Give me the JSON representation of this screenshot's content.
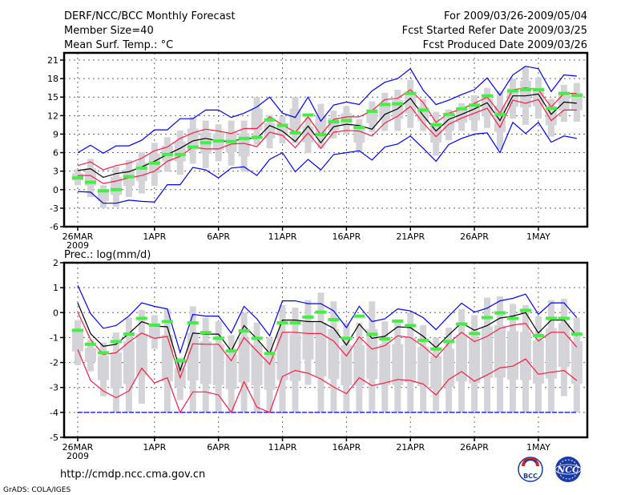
{
  "header": {
    "title": "DERF/NCC/BCC Monthly Forecast",
    "member_size": "Member Size=40",
    "variable": "Mean Surf. Temp.: °C",
    "period": "For 2009/03/26-2009/05/04",
    "started": "Fcst Started Refer Date 2009/03/25",
    "produced": "Fcst Produced Date 2009/03/26"
  },
  "footer": {
    "url": "http://cmdp.ncc.cma.gov.cn",
    "credit": "GrADS: COLA/IGES",
    "logo_left": "BCC",
    "logo_right": "NCC"
  },
  "colors": {
    "max_min": "#0000ff",
    "spread": "#ff1a40",
    "mean": "#000000",
    "marker": "#44ee44",
    "box": "#d4d4d8"
  },
  "chart_data": [
    {
      "type": "line",
      "title": "Mean Surf. Temp.: °C",
      "x_tick_labels": [
        "26MAR",
        "1APR",
        "6APR",
        "11APR",
        "16APR",
        "21APR",
        "26APR",
        "1MAY"
      ],
      "x_tick_days": [
        0,
        6,
        11,
        16,
        21,
        26,
        31,
        36
      ],
      "year_label": "2009",
      "start_date": "2009-03-26",
      "n_days": 40,
      "ylim": [
        -6,
        21
      ],
      "y_ticks": [
        -6,
        -3,
        0,
        3,
        6,
        9,
        12,
        15,
        18,
        21
      ],
      "series": {
        "max": [
          6.0,
          7.2,
          5.9,
          7.1,
          7.1,
          8.0,
          9.7,
          9.7,
          11.5,
          11.5,
          12.9,
          12.9,
          11.7,
          12.4,
          13.4,
          15.0,
          12.4,
          11.7,
          15.0,
          11.1,
          13.7,
          14.2,
          13.8,
          16.0,
          17.4,
          18.0,
          19.6,
          16.1,
          13.8,
          14.5,
          15.4,
          16.2,
          18.1,
          15.3,
          18.6,
          20.0,
          19.6,
          15.9,
          18.6,
          18.4
        ],
        "min": [
          -0.3,
          -0.4,
          -2.2,
          -2.2,
          -1.7,
          -1.9,
          -2.0,
          0.8,
          0.8,
          3.6,
          3.2,
          1.9,
          3.5,
          3.7,
          2.3,
          4.9,
          6.0,
          2.9,
          4.9,
          3.2,
          5.7,
          6.0,
          6.3,
          4.8,
          6.9,
          7.4,
          8.7,
          6.7,
          4.6,
          7.3,
          8.3,
          9.0,
          9.2,
          6.0,
          10.9,
          9.1,
          10.9,
          7.7,
          8.7,
          8.3
        ],
        "upper": [
          3.9,
          4.5,
          3.2,
          3.9,
          4.3,
          5.1,
          6.3,
          6.9,
          8.3,
          9.2,
          9.8,
          9.5,
          9.1,
          9.9,
          9.9,
          11.8,
          10.5,
          9.3,
          11.8,
          8.9,
          11.4,
          11.8,
          11.8,
          12.8,
          14.6,
          14.8,
          16.2,
          14.1,
          10.9,
          12.4,
          13.1,
          14.0,
          15.0,
          12.4,
          16.2,
          16.5,
          16.2,
          13.4,
          15.6,
          15.6
        ],
        "lower": [
          2.3,
          2.3,
          1.0,
          1.4,
          1.9,
          2.3,
          3.0,
          4.6,
          5.4,
          6.9,
          6.6,
          6.6,
          7.4,
          7.5,
          7.0,
          9.3,
          8.8,
          6.8,
          9.2,
          6.7,
          9.3,
          9.6,
          9.5,
          8.7,
          10.8,
          11.9,
          13.5,
          10.8,
          8.6,
          10.6,
          11.6,
          12.4,
          13.2,
          10.1,
          14.5,
          14.0,
          14.6,
          11.2,
          12.9,
          12.9
        ],
        "mean": [
          3.1,
          3.4,
          2.0,
          2.6,
          2.9,
          3.7,
          4.6,
          5.7,
          6.7,
          7.9,
          8.3,
          7.9,
          7.8,
          8.3,
          8.3,
          10.4,
          9.5,
          7.8,
          10.3,
          7.6,
          10.2,
          10.6,
          10.4,
          9.8,
          12.2,
          13.1,
          14.8,
          12.0,
          9.5,
          11.4,
          12.2,
          13.1,
          14.1,
          11.2,
          15.2,
          15.2,
          15.5,
          12.2,
          14.2,
          14.0
        ],
        "marker": [
          1.9,
          1.2,
          -0.2,
          0.0,
          2.1,
          3.5,
          4.3,
          5.7,
          5.7,
          6.9,
          7.6,
          7.9,
          7.8,
          8.3,
          8.5,
          11.3,
          10.4,
          9.2,
          12.1,
          8.9,
          11.0,
          11.2,
          10.1,
          12.7,
          13.8,
          13.9,
          15.6,
          12.9,
          10.5,
          12.2,
          13.1,
          13.7,
          15.2,
          12.2,
          16.0,
          16.2,
          16.2,
          13.2,
          15.6,
          15.3
        ],
        "range_hi": [
          3.3,
          5.0,
          0.7,
          3.7,
          4.8,
          6.1,
          7.6,
          8.5,
          9.6,
          11.8,
          11.2,
          10.6,
          11.2,
          11.2,
          15.0,
          12.1,
          11.9,
          15.0,
          11.7,
          13.9,
          12.8,
          13.5,
          11.4,
          14.3,
          15.7,
          16.2,
          17.8,
          14.7,
          12.6,
          13.0,
          14.0,
          15.3,
          16.5,
          16.0,
          18.0,
          20.0,
          18.2,
          14.7,
          17.0,
          17.3
        ],
        "range_lo": [
          0.7,
          -1.2,
          -3.0,
          -2.8,
          -1.2,
          -0.6,
          0.6,
          2.9,
          2.4,
          4.2,
          3.5,
          4.6,
          3.9,
          2.9,
          7.3,
          6.7,
          7.5,
          7.5,
          5.9,
          6.7,
          8.3,
          9.0,
          6.0,
          9.3,
          9.5,
          9.5,
          10.0,
          9.5,
          5.5,
          8.0,
          9.5,
          9.5,
          10.0,
          6.5,
          11.5,
          10.5,
          11.5,
          8.6,
          11.0,
          11.0
        ]
      }
    },
    {
      "type": "line",
      "title": "Prec.: log(mm/d)",
      "x_tick_labels": [
        "26MAR",
        "1APR",
        "6APR",
        "11APR",
        "16APR",
        "21APR",
        "26APR",
        "1MAY"
      ],
      "x_tick_days": [
        0,
        6,
        11,
        16,
        21,
        26,
        31,
        36
      ],
      "year_label": "2009",
      "n_days": 40,
      "ylim": [
        -5,
        2
      ],
      "y_ticks": [
        -5,
        -4,
        -3,
        -2,
        -1,
        0,
        1,
        2
      ],
      "series": {
        "max": [
          1.09,
          -0.04,
          -0.63,
          -0.52,
          -0.14,
          0.39,
          0.25,
          0.15,
          -1.6,
          -0.07,
          -0.14,
          -0.14,
          -0.82,
          0.25,
          -0.25,
          -0.93,
          0.47,
          0.47,
          0.36,
          0.36,
          0.07,
          -0.6,
          0.25,
          -0.36,
          -0.25,
          0.15,
          0.07,
          -0.2,
          -0.68,
          -0.14,
          0.38,
          0.02,
          0.18,
          0.47,
          0.57,
          0.74,
          -0.07,
          0.39,
          0.39,
          -0.2
        ],
        "min": [
          -4,
          -4,
          -4,
          -4,
          -4,
          -4,
          -4,
          -4,
          -4,
          -4,
          -4,
          -4,
          -4,
          -4,
          -4,
          -4,
          -4,
          -4,
          -4,
          -4,
          -4,
          -4,
          -4,
          -4,
          -4,
          -4,
          -4,
          -4,
          -4,
          -4,
          -4,
          -4,
          -4,
          -4,
          -4,
          -4,
          -4,
          -4,
          -4,
          -4
        ],
        "upper": [
          0.02,
          -1.08,
          -1.68,
          -1.61,
          -1.18,
          -0.82,
          -1.03,
          -0.95,
          -2.61,
          -1.25,
          -1.27,
          -1.27,
          -1.93,
          -1.0,
          -1.54,
          -2.07,
          -0.79,
          -0.79,
          -0.84,
          -0.84,
          -1.14,
          -1.74,
          -0.97,
          -1.46,
          -1.32,
          -0.93,
          -1.0,
          -1.35,
          -1.8,
          -1.22,
          -0.79,
          -1.16,
          -0.95,
          -0.63,
          -0.5,
          -0.43,
          -1.14,
          -0.79,
          -0.79,
          -1.38
        ],
        "lower": [
          -1.48,
          -2.72,
          -3.14,
          -3.41,
          -3.14,
          -2.23,
          -2.82,
          -2.61,
          -4.0,
          -3.18,
          -3.18,
          -3.3,
          -4.0,
          -2.77,
          -3.79,
          -4.0,
          -2.56,
          -2.32,
          -2.43,
          -2.66,
          -2.98,
          -3.25,
          -2.61,
          -2.93,
          -2.82,
          -2.68,
          -2.72,
          -2.86,
          -3.3,
          -2.68,
          -2.36,
          -2.75,
          -2.5,
          -2.21,
          -2.15,
          -1.86,
          -2.47,
          -2.39,
          -2.32,
          -2.72
        ],
        "mean": [
          0.39,
          -0.84,
          -1.35,
          -1.27,
          -0.84,
          -0.36,
          -0.54,
          -0.57,
          -2.32,
          -0.82,
          -0.86,
          -0.86,
          -1.54,
          -0.52,
          -1.05,
          -1.64,
          -0.3,
          -0.3,
          -0.36,
          -0.36,
          -0.63,
          -1.3,
          -0.46,
          -1.03,
          -0.95,
          -0.57,
          -0.6,
          -0.95,
          -1.4,
          -0.89,
          -0.41,
          -0.71,
          -0.52,
          -0.22,
          -0.14,
          0.0,
          -0.82,
          -0.3,
          -0.3,
          -0.93
        ],
        "marker": [
          -0.71,
          -1.27,
          -1.61,
          -1.16,
          -0.86,
          -0.23,
          -0.5,
          -0.36,
          -1.93,
          -0.41,
          -0.8,
          -1.03,
          -1.54,
          -0.73,
          -1.03,
          -1.64,
          -0.41,
          -0.41,
          -0.18,
          0.02,
          -0.28,
          -1.03,
          -0.14,
          -0.87,
          -1.05,
          -0.34,
          -0.52,
          -1.11,
          -1.46,
          -1.16,
          -0.46,
          -0.84,
          -0.2,
          -0.01,
          -0.23,
          0.09,
          -0.92,
          -0.23,
          -0.23,
          -0.86
        ],
        "range_hi": [
          -0.3,
          -1.1,
          -1.2,
          -0.8,
          -0.2,
          0.1,
          -0.1,
          0.15,
          -1.8,
          0.25,
          -0.2,
          -0.35,
          -0.9,
          0.0,
          -0.4,
          -1.0,
          0.3,
          0.2,
          0.5,
          0.8,
          0.45,
          -0.4,
          -0.4,
          0.45,
          -0.35,
          -0.35,
          0.0,
          -0.5,
          -1.0,
          -0.6,
          0.15,
          -0.1,
          0.6,
          0.65,
          0.35,
          0.3,
          -0.15,
          0.5,
          0.55,
          -0.2
        ],
        "range_lo": [
          -2.1,
          -2.35,
          -3.35,
          -4,
          -4,
          -3.65,
          -1.45,
          -4,
          -3.5,
          -4,
          -4,
          -4,
          -4,
          -4,
          -4,
          -4,
          -4,
          -4,
          -2.9,
          -4,
          -4,
          -4,
          -4,
          -4,
          -4,
          -4,
          -4,
          -4,
          -3.95,
          -4,
          -4,
          -4,
          -4,
          -4,
          -4,
          -4,
          -4,
          -4,
          -3.35,
          -4
        ]
      }
    }
  ]
}
